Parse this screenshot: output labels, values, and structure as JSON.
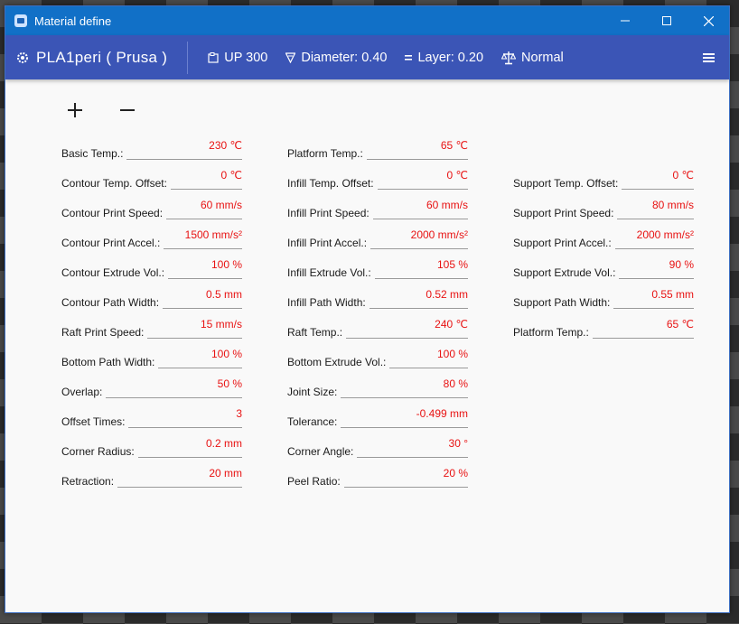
{
  "window": {
    "title": "Material define",
    "minimize": "—",
    "maximize": "☐",
    "close": "✕"
  },
  "header": {
    "material": "PLA1peri ( Prusa )",
    "printer": "UP 300",
    "diameter": "Diameter: 0.40",
    "layer": "Layer: 0.20",
    "quality": "Normal"
  },
  "toolbar": {
    "add": "+",
    "remove": "−"
  },
  "columns": [
    [
      {
        "label": "Basic Temp.:",
        "value": "230 ℃"
      },
      {
        "label": "Contour Temp. Offset:",
        "value": "0 ℃"
      },
      {
        "label": "Contour Print Speed:",
        "value": "60 mm/s"
      },
      {
        "label": "Contour Print Accel.:",
        "value": "1500 mm/s²"
      },
      {
        "label": "Contour Extrude Vol.:",
        "value": "100 %"
      },
      {
        "label": "Contour Path Width:",
        "value": "0.5 mm"
      },
      {
        "label": "Raft Print Speed:",
        "value": "15 mm/s"
      },
      {
        "label": "Bottom Path Width:",
        "value": "100 %"
      },
      {
        "label": "Overlap:",
        "value": "50 %"
      },
      {
        "label": "Offset Times:",
        "value": "3"
      },
      {
        "label": "Corner Radius:",
        "value": "0.2 mm"
      },
      {
        "label": "Retraction:",
        "value": "20 mm"
      }
    ],
    [
      {
        "label": "Platform Temp.:",
        "value": "65 ℃"
      },
      {
        "label": "Infill Temp. Offset:",
        "value": "0 ℃"
      },
      {
        "label": "Infill Print Speed:",
        "value": "60 mm/s"
      },
      {
        "label": "Infill Print Accel.:",
        "value": "2000 mm/s²"
      },
      {
        "label": "Infill Extrude Vol.:",
        "value": "105 %"
      },
      {
        "label": "Infill Path Width:",
        "value": "0.52 mm"
      },
      {
        "label": "Raft Temp.:",
        "value": "240 ℃"
      },
      {
        "label": "Bottom Extrude Vol.:",
        "value": "100 %"
      },
      {
        "label": "Joint Size:",
        "value": "80 %"
      },
      {
        "label": "Tolerance:",
        "value": "-0.499 mm"
      },
      {
        "label": "Corner Angle:",
        "value": "30 °"
      },
      {
        "label": "Peel Ratio:",
        "value": "20 %"
      }
    ],
    [
      {
        "label": "Support Temp. Offset:",
        "value": "0 ℃"
      },
      {
        "label": "Support Print Speed:",
        "value": "80 mm/s"
      },
      {
        "label": "Support Print Accel.:",
        "value": "2000 mm/s²"
      },
      {
        "label": "Support Extrude Vol.:",
        "value": "90 %"
      },
      {
        "label": "Support Path Width:",
        "value": "0.55 mm"
      },
      {
        "label": "Platform Temp.:",
        "value": "65 ℃"
      }
    ]
  ]
}
